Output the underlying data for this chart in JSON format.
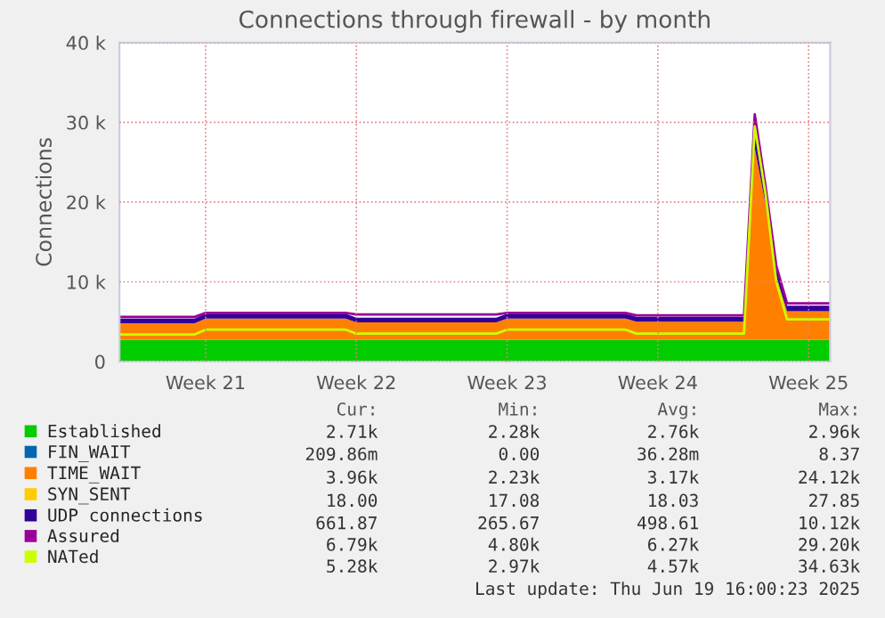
{
  "chart_data": {
    "type": "area",
    "stacked": true,
    "title": "Connections through firewall - by month",
    "ylabel": "Connections",
    "categories": [
      null,
      null,
      null,
      null,
      null,
      null,
      null,
      null,
      "Week 21",
      null,
      null,
      null,
      null,
      null,
      null,
      null,
      null,
      null,
      null,
      null,
      null,
      null,
      "Week 22",
      null,
      null,
      null,
      null,
      null,
      null,
      null,
      null,
      null,
      null,
      null,
      null,
      null,
      "Week 23",
      null,
      null,
      null,
      null,
      null,
      null,
      null,
      null,
      null,
      null,
      null,
      null,
      null,
      "Week 24",
      null,
      null,
      null,
      null,
      null,
      null,
      null,
      null,
      null,
      null,
      null,
      null,
      null,
      "Week 25",
      null,
      null
    ],
    "series": [
      {
        "name": "Established",
        "color": "#00cc00",
        "values": [
          2700,
          2700,
          2700,
          2700,
          2700,
          2700,
          2700,
          2700,
          2700,
          2700,
          2700,
          2700,
          2700,
          2700,
          2700,
          2700,
          2700,
          2700,
          2700,
          2700,
          2700,
          2700,
          2700,
          2700,
          2700,
          2700,
          2700,
          2700,
          2700,
          2700,
          2700,
          2700,
          2700,
          2700,
          2700,
          2700,
          2700,
          2700,
          2700,
          2700,
          2700,
          2700,
          2700,
          2700,
          2700,
          2700,
          2700,
          2700,
          2700,
          2700,
          2700,
          2700,
          2700,
          2700,
          2700,
          2700,
          2700,
          2700,
          2700,
          2700,
          2700,
          2700,
          2700,
          2700,
          2700,
          2700,
          2700
        ]
      },
      {
        "name": "FIN_WAIT",
        "color": "#0066b3",
        "values": [
          null,
          null,
          null,
          null,
          null,
          null,
          null,
          null,
          null,
          null,
          null,
          null,
          null,
          null,
          null,
          null,
          null,
          null,
          null,
          null,
          null,
          null,
          null,
          null,
          null,
          null,
          null,
          null,
          null,
          null,
          null,
          null,
          null,
          null,
          null,
          null,
          null,
          null,
          null,
          null,
          null,
          null,
          null,
          null,
          null,
          null,
          null,
          null,
          null,
          null,
          null,
          null,
          null,
          null,
          null,
          null,
          null,
          null,
          null,
          null,
          null,
          null,
          null,
          null,
          null,
          null,
          null
        ]
      },
      {
        "name": "TIME_WAIT",
        "color": "#ff8000",
        "values": [
          2100,
          2100,
          2100,
          2100,
          2100,
          2100,
          2100,
          2100,
          2700,
          2700,
          2700,
          2700,
          2700,
          2700,
          2700,
          2700,
          2700,
          2700,
          2700,
          2700,
          2700,
          2700,
          2200,
          2200,
          2200,
          2200,
          2200,
          2200,
          2200,
          2200,
          2200,
          2200,
          2200,
          2200,
          2200,
          2200,
          2700,
          2700,
          2700,
          2700,
          2700,
          2700,
          2700,
          2700,
          2700,
          2700,
          2700,
          2700,
          2300,
          2300,
          2300,
          2300,
          2300,
          2300,
          2300,
          2300,
          2300,
          2300,
          2300,
          24100,
          17000,
          8000,
          3600,
          3600,
          3600,
          3600,
          3600
        ]
      },
      {
        "name": "SYN_SENT",
        "color": "#ffcc00",
        "values": [
          null,
          null,
          null,
          null,
          null,
          null,
          null,
          null,
          null,
          null,
          null,
          null,
          null,
          null,
          null,
          null,
          null,
          null,
          null,
          null,
          null,
          null,
          null,
          null,
          null,
          null,
          null,
          null,
          null,
          null,
          null,
          null,
          null,
          null,
          null,
          null,
          null,
          null,
          null,
          null,
          null,
          null,
          null,
          null,
          null,
          null,
          null,
          null,
          null,
          null,
          null,
          null,
          null,
          null,
          null,
          null,
          null,
          null,
          null,
          null,
          null,
          null,
          null,
          null,
          null,
          null,
          null
        ]
      },
      {
        "name": "UDP connections",
        "color": "#330099",
        "values": [
          600,
          600,
          600,
          600,
          600,
          600,
          600,
          600,
          600,
          600,
          600,
          600,
          600,
          600,
          600,
          600,
          600,
          600,
          600,
          600,
          600,
          600,
          600,
          600,
          600,
          600,
          600,
          600,
          600,
          600,
          600,
          600,
          600,
          600,
          600,
          600,
          600,
          600,
          600,
          600,
          600,
          600,
          600,
          600,
          600,
          600,
          600,
          600,
          600,
          600,
          600,
          600,
          600,
          600,
          600,
          600,
          600,
          600,
          600,
          2500,
          2500,
          1500,
          700,
          700,
          700,
          700,
          700
        ]
      },
      {
        "name": "Assured",
        "type": "line",
        "color": "#990099",
        "values": [
          5600,
          5600,
          5600,
          5600,
          5600,
          5600,
          5600,
          5600,
          6100,
          6100,
          6100,
          6100,
          6100,
          6100,
          6100,
          6100,
          6100,
          6100,
          6100,
          6100,
          6100,
          6100,
          5900,
          5900,
          5900,
          5900,
          5900,
          5900,
          5900,
          5900,
          5900,
          5900,
          5900,
          5900,
          5900,
          5900,
          6100,
          6100,
          6100,
          6100,
          6100,
          6100,
          6100,
          6100,
          6100,
          6100,
          6100,
          6100,
          5800,
          5800,
          5800,
          5800,
          5800,
          5800,
          5800,
          5800,
          5800,
          5800,
          5800,
          31000,
          22000,
          12000,
          7300,
          7300,
          7300,
          7300,
          7300
        ]
      },
      {
        "name": "NATed",
        "type": "line",
        "color": "#ccff00",
        "values": [
          3400,
          3400,
          3400,
          3400,
          3400,
          3400,
          3400,
          3400,
          4000,
          4000,
          4000,
          4000,
          4000,
          4000,
          4000,
          4000,
          4000,
          4000,
          4000,
          4000,
          4000,
          4000,
          3500,
          3500,
          3500,
          3500,
          3500,
          3500,
          3500,
          3500,
          3500,
          3500,
          3500,
          3500,
          3500,
          3500,
          4000,
          4000,
          4000,
          4000,
          4000,
          4000,
          4000,
          4000,
          4000,
          4000,
          4000,
          4000,
          3500,
          3500,
          3500,
          3500,
          3500,
          3500,
          3500,
          3500,
          3500,
          3500,
          3500,
          29500,
          21000,
          10000,
          5300,
          5300,
          5300,
          5300,
          5300
        ]
      }
    ],
    "ylim": [
      0,
      40000
    ],
    "yticks": [
      {
        "value": 0,
        "label": "0"
      },
      {
        "value": 10000,
        "label": "10 k"
      },
      {
        "value": 20000,
        "label": "20 k"
      },
      {
        "value": 30000,
        "label": "30 k"
      },
      {
        "value": 40000,
        "label": "40 k"
      }
    ],
    "grid": true,
    "legend": "bottom",
    "annotations": [
      "Cur:",
      "Min:",
      "Avg:",
      "Max:",
      "2.71k",
      "2.28k",
      "2.76k",
      "2.96k",
      "209.86m",
      "0.00",
      "36.28m",
      "8.37",
      "3.96k",
      "2.23k",
      "3.17k",
      "24.12k",
      "18.00",
      "17.08",
      "18.03",
      "27.85",
      "661.87",
      "265.67",
      "498.61",
      "10.12k",
      "6.79k",
      "4.80k",
      "6.27k",
      "29.20k",
      "5.28k",
      "2.97k",
      "4.57k",
      "34.63k",
      "Last update: Thu Jun 19 16:00:23 2025"
    ]
  }
}
